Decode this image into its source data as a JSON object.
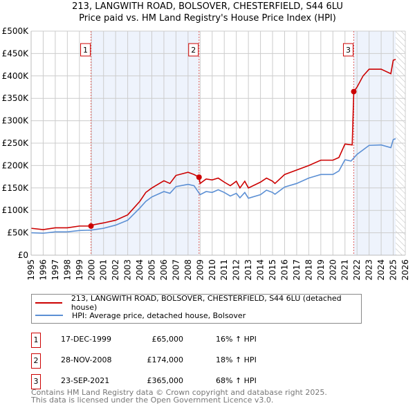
{
  "chart_data": {
    "type": "line",
    "title": "213, LANGWITH ROAD, BOLSOVER, CHESTERFIELD, S44 6LU",
    "subtitle": "Price paid vs. HM Land Registry's House Price Index (HPI)",
    "xlim": [
      1995,
      2026
    ],
    "ylim": [
      0,
      500000
    ],
    "x_ticks": [
      "1995",
      "1996",
      "1997",
      "1998",
      "1999",
      "2000",
      "2001",
      "2002",
      "2003",
      "2004",
      "2005",
      "2006",
      "2007",
      "2008",
      "2009",
      "2010",
      "2011",
      "2012",
      "2013",
      "2014",
      "2015",
      "2016",
      "2017",
      "2018",
      "2019",
      "2020",
      "2021",
      "2022",
      "2023",
      "2024",
      "2025",
      "2026"
    ],
    "y_ticks": [
      {
        "v": 0,
        "l": "£0"
      },
      {
        "v": 50000,
        "l": "£50K"
      },
      {
        "v": 100000,
        "l": "£100K"
      },
      {
        "v": 150000,
        "l": "£150K"
      },
      {
        "v": 200000,
        "l": "£200K"
      },
      {
        "v": 250000,
        "l": "£250K"
      },
      {
        "v": 300000,
        "l": "£300K"
      },
      {
        "v": 350000,
        "l": "£350K"
      },
      {
        "v": 400000,
        "l": "£400K"
      },
      {
        "v": 450000,
        "l": "£450K"
      },
      {
        "v": 500000,
        "l": "£500K"
      }
    ],
    "grid": true,
    "series": [
      {
        "name": "213, LANGWITH ROAD, BOLSOVER, CHESTERFIELD, S44 6LU (detached house)",
        "color": "#cc0000",
        "x": [
          1995,
          1996,
          1997,
          1998,
          1999,
          1999.96,
          2000,
          2001,
          2002,
          2003,
          2004,
          2004.5,
          2005,
          2006,
          2006.5,
          2007,
          2008,
          2008.5,
          2008.91,
          2009,
          2009.5,
          2010,
          2010.5,
          2011,
          2011.5,
          2012,
          2012.3,
          2012.7,
          2013,
          2014,
          2014.5,
          2015,
          2015.2,
          2016,
          2017,
          2018,
          2019,
          2020,
          2020.5,
          2021,
          2021.6,
          2021.73,
          2022,
          2022.5,
          2023,
          2024,
          2024.8,
          2025,
          2025.2
        ],
        "y": [
          60000,
          57000,
          61000,
          61000,
          65000,
          65000,
          67000,
          72000,
          78000,
          90000,
          120000,
          140000,
          150000,
          166000,
          160000,
          178000,
          185000,
          180000,
          174000,
          160000,
          170000,
          168000,
          172000,
          163000,
          155000,
          165000,
          150000,
          165000,
          150000,
          163000,
          172000,
          165000,
          160000,
          180000,
          190000,
          200000,
          212000,
          212000,
          218000,
          248000,
          246000,
          365000,
          375000,
          400000,
          415000,
          415000,
          405000,
          435000,
          437000
        ]
      },
      {
        "name": "HPI: Average price, detached house, Bolsover",
        "color": "#5b8fd4",
        "x": [
          1995,
          1996,
          1997,
          1998,
          1999,
          2000,
          2001,
          2002,
          2003,
          2004,
          2004.5,
          2005,
          2006,
          2006.5,
          2007,
          2008,
          2008.5,
          2009,
          2009.5,
          2010,
          2010.5,
          2011,
          2011.5,
          2012,
          2012.3,
          2012.7,
          2013,
          2014,
          2014.5,
          2015,
          2015.2,
          2016,
          2017,
          2018,
          2019,
          2020,
          2020.5,
          2021,
          2021.5,
          2022,
          2023,
          2024,
          2024.8,
          2025,
          2025.2
        ],
        "y": [
          50000,
          49000,
          52000,
          52000,
          55000,
          56000,
          60000,
          67000,
          78000,
          105000,
          120000,
          130000,
          142000,
          138000,
          153000,
          158000,
          155000,
          135000,
          142000,
          140000,
          146000,
          140000,
          132000,
          138000,
          128000,
          140000,
          127000,
          135000,
          145000,
          140000,
          136000,
          152000,
          160000,
          172000,
          180000,
          180000,
          188000,
          213000,
          210000,
          225000,
          245000,
          246000,
          240000,
          258000,
          260000
        ]
      }
    ],
    "sales": [
      {
        "label": "1",
        "x": 1999.96,
        "y": 65000,
        "date": "17-DEC-1999",
        "price": "£65,000",
        "hpi": "16% ↑ HPI"
      },
      {
        "label": "2",
        "x": 2008.91,
        "y": 174000,
        "date": "28-NOV-2008",
        "price": "£174,000",
        "hpi": "18% ↑ HPI"
      },
      {
        "label": "3",
        "x": 2021.73,
        "y": 365000,
        "date": "23-SEP-2021",
        "price": "£365,000",
        "hpi": "68% ↑ HPI"
      }
    ],
    "data_end": 2025.2,
    "legend_position": "below"
  },
  "footer": {
    "line1": "Contains HM Land Registry data © Crown copyright and database right 2025.",
    "line2": "This data is licensed under the Open Government Licence v3.0."
  }
}
